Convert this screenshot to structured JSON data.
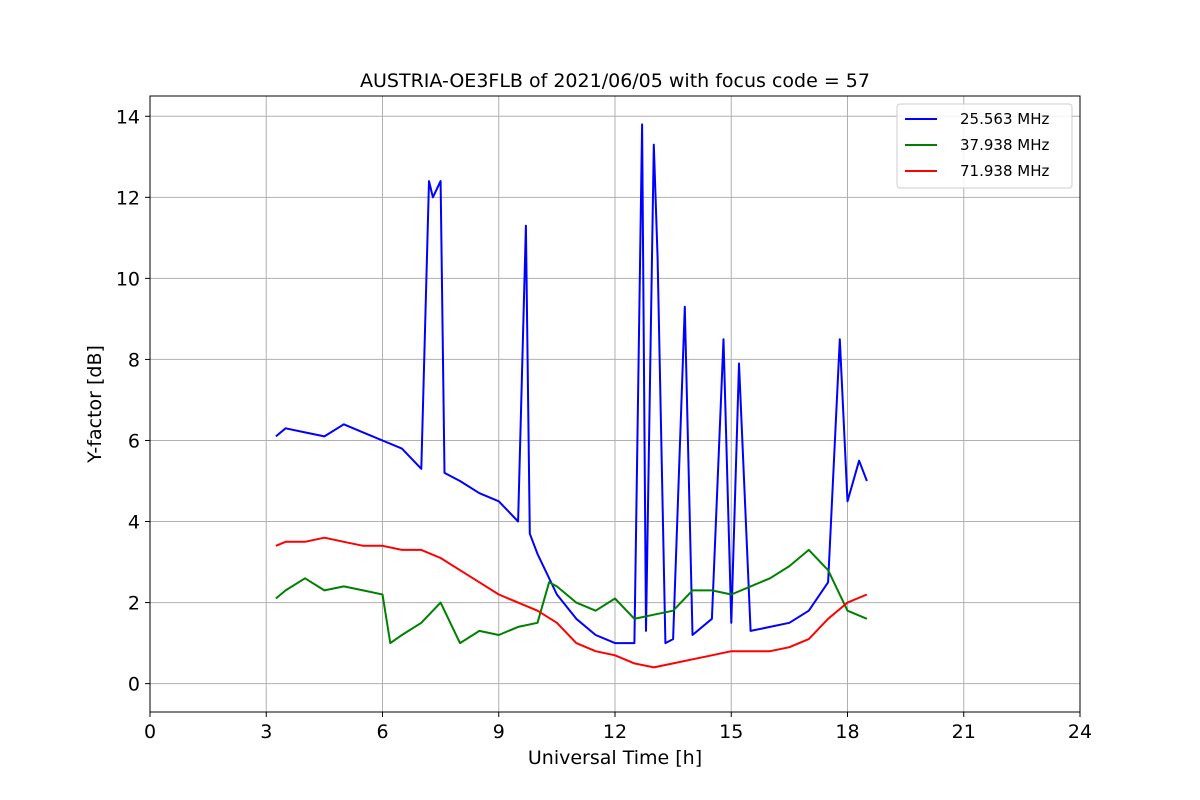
{
  "chart_data": {
    "type": "line",
    "title": "AUSTRIA-OE3FLB of 2021/06/05 with focus code = 57",
    "xlabel": "Universal Time [h]",
    "ylabel": "Y-factor [dB]",
    "xlim": [
      0,
      24
    ],
    "ylim": [
      -0.7,
      14.5
    ],
    "xticks": [
      0,
      3,
      6,
      9,
      12,
      15,
      18,
      21,
      24
    ],
    "yticks": [
      0,
      2,
      4,
      6,
      8,
      10,
      12,
      14
    ],
    "grid": true,
    "legend_position": "top-right",
    "series": [
      {
        "name": "25.563 MHz",
        "color": "#0000ff",
        "points": [
          [
            3.25,
            6.1
          ],
          [
            3.5,
            6.3
          ],
          [
            4.0,
            6.2
          ],
          [
            4.5,
            6.1
          ],
          [
            5.0,
            6.4
          ],
          [
            5.5,
            6.2
          ],
          [
            6.0,
            6.0
          ],
          [
            6.5,
            5.8
          ],
          [
            7.0,
            5.3
          ],
          [
            7.2,
            12.4
          ],
          [
            7.3,
            12.0
          ],
          [
            7.5,
            12.4
          ],
          [
            7.6,
            5.2
          ],
          [
            8.0,
            5.0
          ],
          [
            8.5,
            4.7
          ],
          [
            9.0,
            4.5
          ],
          [
            9.5,
            4.0
          ],
          [
            9.7,
            11.3
          ],
          [
            9.8,
            3.7
          ],
          [
            10.0,
            3.2
          ],
          [
            10.5,
            2.2
          ],
          [
            11.0,
            1.6
          ],
          [
            11.5,
            1.2
          ],
          [
            12.0,
            1.0
          ],
          [
            12.5,
            1.0
          ],
          [
            12.7,
            13.8
          ],
          [
            12.8,
            1.3
          ],
          [
            13.0,
            13.3
          ],
          [
            13.1,
            10.5
          ],
          [
            13.3,
            1.0
          ],
          [
            13.5,
            1.1
          ],
          [
            13.8,
            9.3
          ],
          [
            14.0,
            1.2
          ],
          [
            14.5,
            1.6
          ],
          [
            14.8,
            8.5
          ],
          [
            15.0,
            1.5
          ],
          [
            15.2,
            7.9
          ],
          [
            15.5,
            1.3
          ],
          [
            16.0,
            1.4
          ],
          [
            16.5,
            1.5
          ],
          [
            17.0,
            1.8
          ],
          [
            17.5,
            2.5
          ],
          [
            17.8,
            8.5
          ],
          [
            18.0,
            4.5
          ],
          [
            18.3,
            5.5
          ],
          [
            18.5,
            5.0
          ]
        ]
      },
      {
        "name": "37.938 MHz",
        "color": "#008000",
        "points": [
          [
            3.25,
            2.1
          ],
          [
            3.5,
            2.3
          ],
          [
            4.0,
            2.6
          ],
          [
            4.5,
            2.3
          ],
          [
            5.0,
            2.4
          ],
          [
            5.5,
            2.3
          ],
          [
            6.0,
            2.2
          ],
          [
            6.2,
            1.0
          ],
          [
            6.5,
            1.2
          ],
          [
            7.0,
            1.5
          ],
          [
            7.5,
            2.0
          ],
          [
            8.0,
            1.0
          ],
          [
            8.5,
            1.3
          ],
          [
            9.0,
            1.2
          ],
          [
            9.5,
            1.4
          ],
          [
            10.0,
            1.5
          ],
          [
            10.3,
            2.5
          ],
          [
            10.5,
            2.4
          ],
          [
            11.0,
            2.0
          ],
          [
            11.5,
            1.8
          ],
          [
            12.0,
            2.1
          ],
          [
            12.5,
            1.6
          ],
          [
            13.0,
            1.7
          ],
          [
            13.5,
            1.8
          ],
          [
            14.0,
            2.3
          ],
          [
            14.5,
            2.3
          ],
          [
            15.0,
            2.2
          ],
          [
            15.5,
            2.4
          ],
          [
            16.0,
            2.6
          ],
          [
            16.5,
            2.9
          ],
          [
            17.0,
            3.3
          ],
          [
            17.5,
            2.8
          ],
          [
            18.0,
            1.8
          ],
          [
            18.5,
            1.6
          ]
        ]
      },
      {
        "name": "71.938 MHz",
        "color": "#ff0000",
        "points": [
          [
            3.25,
            3.4
          ],
          [
            3.5,
            3.5
          ],
          [
            4.0,
            3.5
          ],
          [
            4.5,
            3.6
          ],
          [
            5.0,
            3.5
          ],
          [
            5.5,
            3.4
          ],
          [
            6.0,
            3.4
          ],
          [
            6.5,
            3.3
          ],
          [
            7.0,
            3.3
          ],
          [
            7.5,
            3.1
          ],
          [
            8.0,
            2.8
          ],
          [
            8.5,
            2.5
          ],
          [
            9.0,
            2.2
          ],
          [
            9.5,
            2.0
          ],
          [
            10.0,
            1.8
          ],
          [
            10.5,
            1.5
          ],
          [
            11.0,
            1.0
          ],
          [
            11.5,
            0.8
          ],
          [
            12.0,
            0.7
          ],
          [
            12.5,
            0.5
          ],
          [
            13.0,
            0.4
          ],
          [
            13.5,
            0.5
          ],
          [
            14.0,
            0.6
          ],
          [
            14.5,
            0.7
          ],
          [
            15.0,
            0.8
          ],
          [
            15.5,
            0.8
          ],
          [
            16.0,
            0.8
          ],
          [
            16.5,
            0.9
          ],
          [
            17.0,
            1.1
          ],
          [
            17.5,
            1.6
          ],
          [
            18.0,
            2.0
          ],
          [
            18.5,
            2.2
          ]
        ]
      }
    ]
  }
}
